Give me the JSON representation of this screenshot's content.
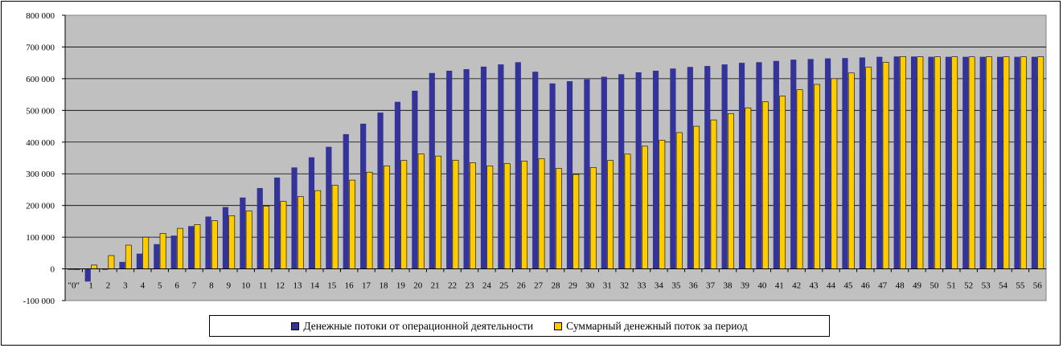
{
  "chart_data": {
    "type": "bar",
    "categories": [
      "\"0\"",
      "1",
      "2",
      "3",
      "4",
      "5",
      "6",
      "7",
      "8",
      "9",
      "10",
      "11",
      "12",
      "13",
      "14",
      "15",
      "16",
      "17",
      "18",
      "19",
      "20",
      "21",
      "22",
      "23",
      "24",
      "25",
      "26",
      "27",
      "28",
      "29",
      "30",
      "31",
      "32",
      "33",
      "34",
      "35",
      "36",
      "37",
      "38",
      "39",
      "40",
      "41",
      "42",
      "43",
      "44",
      "45",
      "46",
      "47",
      "48",
      "49",
      "50",
      "51",
      "52",
      "53",
      "54",
      "55",
      "56"
    ],
    "series": [
      {
        "name": "Денежные потоки от операционной деятельности",
        "color": "#333399",
        "values": [
          -3000,
          -40000,
          -3000,
          22000,
          48000,
          78000,
          105000,
          135000,
          165000,
          195000,
          225000,
          255000,
          288000,
          320000,
          352000,
          385000,
          425000,
          458000,
          493000,
          527000,
          562000,
          618000,
          625000,
          630000,
          638000,
          645000,
          652000,
          622000,
          585000,
          592000,
          598000,
          606000,
          614000,
          620000,
          625000,
          632000,
          637000,
          640000,
          645000,
          650000,
          652000,
          656000,
          660000,
          662000,
          664000,
          665000,
          667000,
          669000,
          670000,
          670000,
          669000,
          669000,
          669000,
          669000,
          669000,
          669000,
          669000
        ]
      },
      {
        "name": "Суммарный денежный поток за период",
        "color": "#FFCC00",
        "values": [
          -1000,
          12000,
          42000,
          75000,
          100000,
          112000,
          128000,
          140000,
          152000,
          168000,
          183000,
          198000,
          213000,
          228000,
          247000,
          264000,
          280000,
          305000,
          325000,
          342000,
          363000,
          356000,
          343000,
          335000,
          325000,
          332000,
          340000,
          348000,
          317000,
          298000,
          320000,
          342000,
          362000,
          387000,
          406000,
          430000,
          450000,
          470000,
          490000,
          508000,
          527000,
          545000,
          565000,
          582000,
          600000,
          618000,
          636000,
          652000,
          670000,
          669000,
          669000,
          669000,
          669000,
          669000,
          669000,
          669000,
          669000
        ]
      }
    ],
    "y_ticks": [
      "-100 000",
      "0",
      "100 000",
      "200 000",
      "300 000",
      "400 000",
      "500 000",
      "600 000",
      "700 000",
      "800 000"
    ],
    "ylim": [
      -100000,
      800000
    ],
    "grid": true,
    "legend_position": "bottom"
  }
}
